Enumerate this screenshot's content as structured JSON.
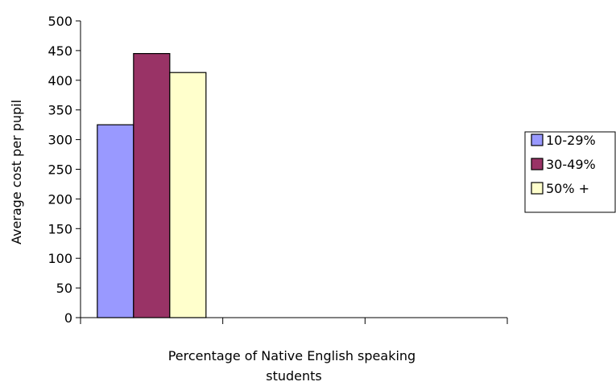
{
  "chart_data": {
    "type": "bar",
    "categories": [
      ""
    ],
    "series": [
      {
        "name": "10-29%",
        "values": [
          325
        ],
        "color": "#9999ff"
      },
      {
        "name": "30-49%",
        "values": [
          445
        ],
        "color": "#993366"
      },
      {
        "name": "50% +",
        "values": [
          413
        ],
        "color": "#ffffcc"
      }
    ],
    "category_slots": 3,
    "xlabel_lines": [
      "Percentage of Native English speaking",
      "students"
    ],
    "ylabel": "Average cost per pupil",
    "ylim": [
      0,
      500
    ],
    "yticks": [
      "0",
      "50",
      "100",
      "150",
      "200",
      "250",
      "300",
      "350",
      "400",
      "450",
      "500"
    ],
    "grid": false,
    "legend_position": "right"
  }
}
